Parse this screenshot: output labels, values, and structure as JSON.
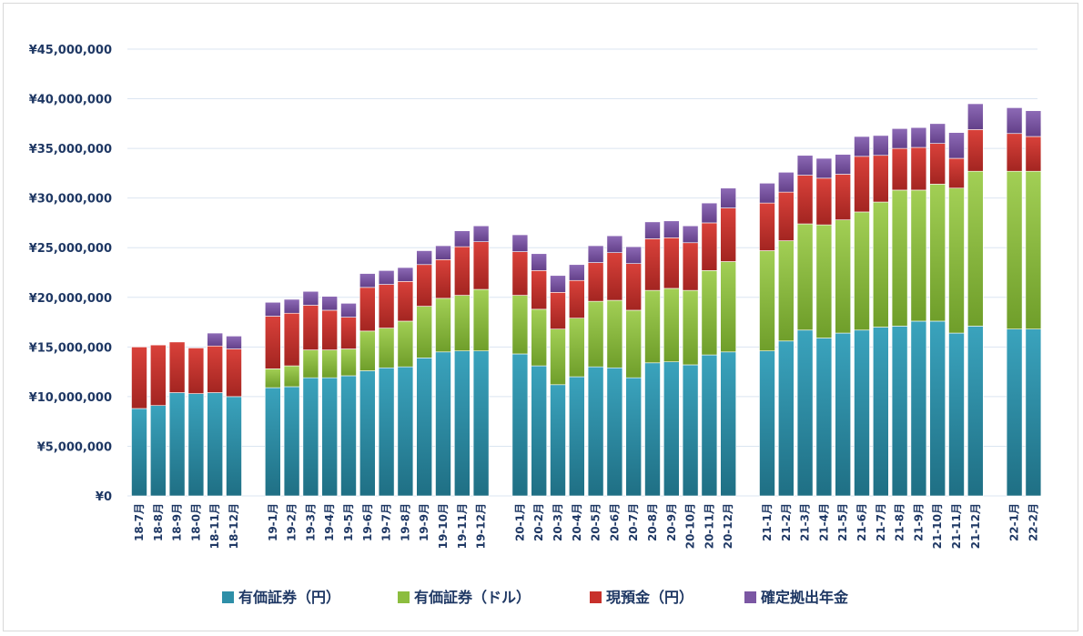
{
  "chart_data": {
    "type": "bar",
    "stacked": true,
    "title": "",
    "xlabel": "",
    "ylabel": "",
    "ylim": [
      0,
      45000000
    ],
    "yticks": [
      0,
      5000000,
      10000000,
      15000000,
      20000000,
      25000000,
      30000000,
      35000000,
      40000000,
      45000000
    ],
    "ytick_labels": [
      "¥0",
      "¥5,000,000",
      "¥10,000,000",
      "¥15,000,000",
      "¥20,000,000",
      "¥25,000,000",
      "¥30,000,000",
      "¥35,000,000",
      "¥40,000,000",
      "¥45,000,000"
    ],
    "grid": true,
    "legend_position": "bottom",
    "categories": [
      "18-7月",
      "18-8月",
      "18-9月",
      "18-0月",
      "18-11月",
      "18-12月",
      "19-1月",
      "19-2月",
      "19-3月",
      "19-4月",
      "19-5月",
      "19-6月",
      "19-7月",
      "19-8月",
      "19-9月",
      "19-10月",
      "19-11月",
      "19-12月",
      "20-1月",
      "20-2月",
      "20-3月",
      "20-4月",
      "20-5月",
      "20-6月",
      "20-7月",
      "20-8月",
      "20-9月",
      "20-10月",
      "20-11月",
      "20-12月",
      "21-1月",
      "21-2月",
      "21-3月",
      "21-4月",
      "21-5月",
      "21-6月",
      "21-7月",
      "21-8月",
      "21-9月",
      "21-10月",
      "21-11月",
      "21-12月",
      "22-1月",
      "22-2月"
    ],
    "groups": [
      6,
      12,
      12,
      12,
      2
    ],
    "series": [
      {
        "name": "有価証券（円）",
        "color": "#2e8fa8",
        "values": [
          8800000,
          9100000,
          10400000,
          10300000,
          10400000,
          10000000,
          10900000,
          11000000,
          11900000,
          11900000,
          12100000,
          12600000,
          12900000,
          13000000,
          13900000,
          14500000,
          14600000,
          14600000,
          14300000,
          13100000,
          11200000,
          12000000,
          13000000,
          12900000,
          11900000,
          13400000,
          13500000,
          13200000,
          14200000,
          14500000,
          14600000,
          15600000,
          16700000,
          15900000,
          16400000,
          16700000,
          17000000,
          17100000,
          17600000,
          17600000,
          16400000,
          17100000,
          16800000,
          16800000
        ]
      },
      {
        "name": "有価証券（ドル）",
        "color": "#8cbd3f",
        "values": [
          0,
          0,
          0,
          0,
          0,
          0,
          1900000,
          2100000,
          2800000,
          2800000,
          2700000,
          4000000,
          4000000,
          4600000,
          5200000,
          5400000,
          5600000,
          6200000,
          5900000,
          5700000,
          5600000,
          5900000,
          6600000,
          6800000,
          6800000,
          7300000,
          7400000,
          7500000,
          8500000,
          9100000,
          10100000,
          10100000,
          10700000,
          11400000,
          11400000,
          11900000,
          12600000,
          13700000,
          13200000,
          13800000,
          14600000,
          15600000,
          15900000,
          15900000
        ]
      },
      {
        "name": "現預金（円）",
        "color": "#c8312b",
        "values": [
          6200000,
          6100000,
          5100000,
          4600000,
          4700000,
          4800000,
          5300000,
          5300000,
          4500000,
          4000000,
          3200000,
          4400000,
          4400000,
          4000000,
          4200000,
          3900000,
          4900000,
          4800000,
          4400000,
          3900000,
          3700000,
          3800000,
          3900000,
          4800000,
          4700000,
          5200000,
          5100000,
          4800000,
          4800000,
          5400000,
          4800000,
          4900000,
          4900000,
          4700000,
          4600000,
          5600000,
          4700000,
          4200000,
          4300000,
          4100000,
          3000000,
          4200000,
          3800000,
          3500000
        ]
      },
      {
        "name": "確定拠出年金",
        "color": "#7b57a3",
        "values": [
          0,
          0,
          0,
          0,
          1300000,
          1300000,
          1400000,
          1400000,
          1400000,
          1400000,
          1400000,
          1400000,
          1400000,
          1400000,
          1400000,
          1400000,
          1600000,
          1600000,
          1700000,
          1700000,
          1700000,
          1600000,
          1700000,
          1700000,
          1700000,
          1700000,
          1700000,
          1700000,
          2000000,
          2000000,
          2000000,
          2000000,
          2000000,
          2000000,
          2000000,
          2000000,
          2000000,
          2000000,
          2000000,
          2000000,
          2600000,
          2600000,
          2600000,
          2600000
        ]
      }
    ]
  }
}
